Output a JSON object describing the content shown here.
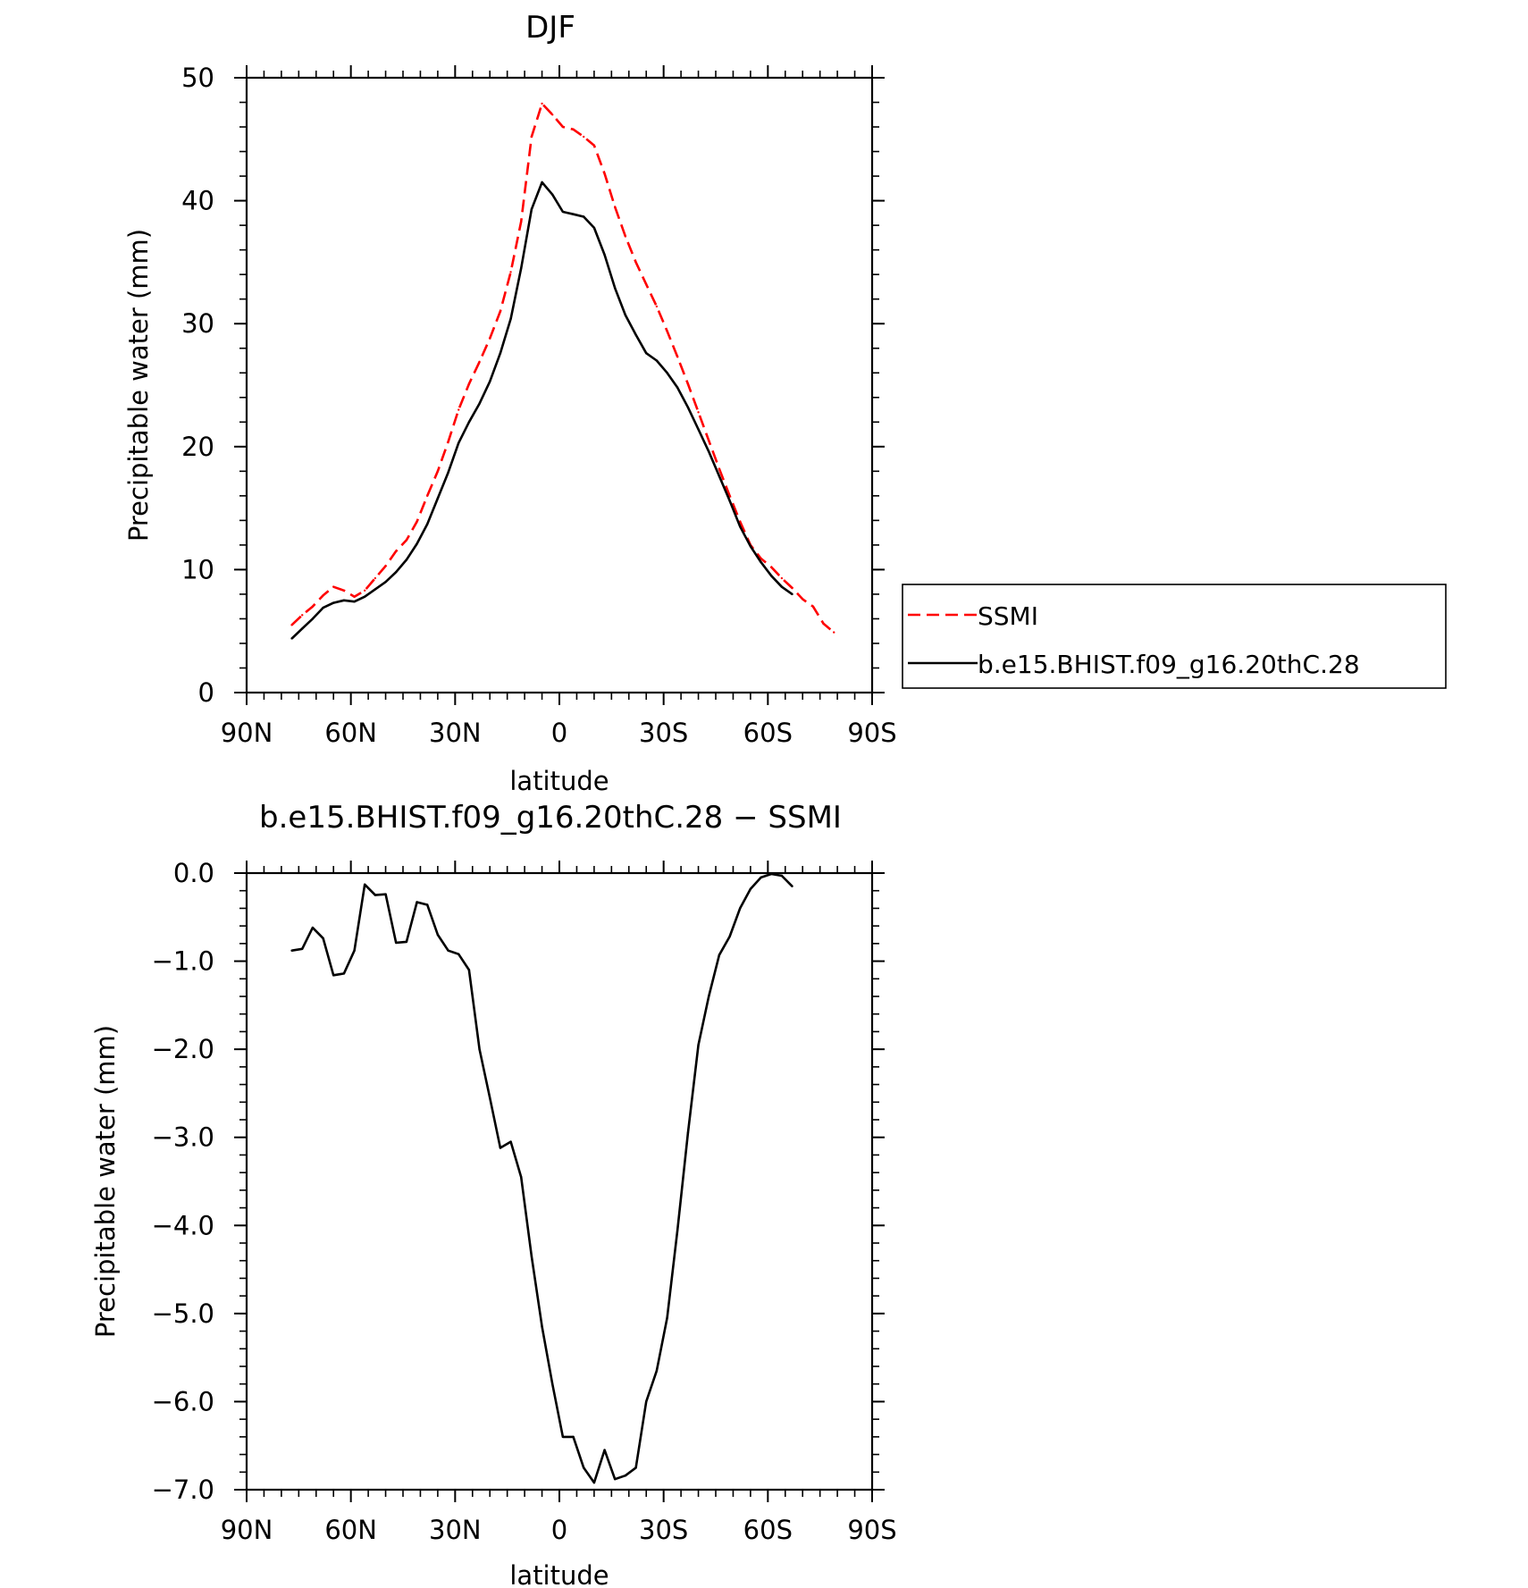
{
  "chart_data": [
    {
      "type": "line",
      "title": "DJF",
      "xlabel": "latitude",
      "ylabel": "Precipitable water (mm)",
      "xlim": [
        90,
        -90
      ],
      "ylim": [
        0,
        50
      ],
      "x_tick_values": [
        90,
        60,
        30,
        0,
        -30,
        -60,
        -90
      ],
      "x_tick_labels": [
        "90N",
        "60N",
        "30N",
        "0",
        "30S",
        "60S",
        "90S"
      ],
      "y_tick_values": [
        0,
        10,
        20,
        30,
        40,
        50
      ],
      "y_tick_labels": [
        "0",
        "10",
        "20",
        "30",
        "40",
        "50"
      ],
      "grid": false,
      "legend_position": "right",
      "series": [
        {
          "name": "SSMI",
          "color": "#ff0000",
          "dash": "dashed",
          "x": [
            77,
            74,
            71,
            68,
            65,
            62,
            59,
            56,
            53,
            50,
            47,
            44,
            41,
            38,
            35,
            32,
            29,
            26,
            23,
            20,
            17,
            14,
            11,
            8,
            5,
            2,
            -1,
            -4,
            -7,
            -10,
            -13,
            -16,
            -19,
            -22,
            -25,
            -28,
            -31,
            -34,
            -37,
            -40,
            -43,
            -46,
            -49,
            -52,
            -55,
            -58,
            -61,
            -64,
            -67,
            -70,
            -73,
            -76,
            -79
          ],
          "y": [
            5.5,
            6.3,
            7.0,
            7.9,
            8.6,
            8.3,
            7.8,
            8.3,
            9.3,
            10.3,
            11.5,
            12.4,
            13.9,
            16.0,
            18.0,
            20.4,
            23.0,
            25.1,
            26.9,
            28.8,
            31.0,
            34.2,
            38.3,
            45.2,
            47.9,
            47.0,
            46.0,
            45.8,
            45.2,
            44.5,
            42.2,
            39.5,
            37.1,
            35.0,
            33.2,
            31.4,
            29.4,
            27.3,
            25.1,
            22.8,
            20.5,
            18.2,
            16.0,
            13.9,
            12.0,
            10.9,
            10.2,
            9.3,
            8.5,
            7.6,
            7.0,
            5.6,
            4.9
          ]
        },
        {
          "name": "b.e15.BHIST.f09_g16.20thC.28",
          "color": "#000000",
          "dash": "solid",
          "x": [
            77,
            74,
            71,
            68,
            65,
            62,
            59,
            56,
            53,
            50,
            47,
            44,
            41,
            38,
            35,
            32,
            29,
            26,
            23,
            20,
            17,
            14,
            11,
            8,
            5,
            2,
            -1,
            -4,
            -7,
            -10,
            -13,
            -16,
            -19,
            -22,
            -25,
            -28,
            -31,
            -34,
            -37,
            -40,
            -43,
            -46,
            -49,
            -52,
            -55,
            -58,
            -61,
            -64,
            -67
          ],
          "y": [
            4.4,
            5.2,
            6.0,
            6.9,
            7.3,
            7.5,
            7.4,
            7.8,
            8.4,
            9.0,
            9.8,
            10.8,
            12.1,
            13.7,
            15.8,
            17.9,
            20.3,
            22.0,
            23.5,
            25.3,
            27.6,
            30.4,
            34.5,
            39.3,
            41.5,
            40.5,
            39.1,
            38.9,
            38.7,
            37.8,
            35.6,
            32.9,
            30.7,
            29.1,
            27.6,
            27.0,
            26.0,
            24.8,
            23.2,
            21.4,
            19.6,
            17.6,
            15.6,
            13.5,
            11.9,
            10.6,
            9.5,
            8.6,
            8.0
          ]
        }
      ]
    },
    {
      "type": "line",
      "title": "b.e15.BHIST.f09_g16.20thC.28 − SSMI",
      "xlabel": "latitude",
      "ylabel": "Precipitable water (mm)",
      "xlim": [
        90,
        -90
      ],
      "ylim": [
        -7.0,
        0.0
      ],
      "x_tick_values": [
        90,
        60,
        30,
        0,
        -30,
        -60,
        -90
      ],
      "x_tick_labels": [
        "90N",
        "60N",
        "30N",
        "0",
        "30S",
        "60S",
        "90S"
      ],
      "y_tick_values": [
        0,
        -1,
        -2,
        -3,
        -4,
        -5,
        -6,
        -7
      ],
      "y_tick_labels": [
        "0.0",
        "−1.0",
        "−2.0",
        "−3.0",
        "−4.0",
        "−5.0",
        "−6.0",
        "−7.0"
      ],
      "grid": false,
      "series": [
        {
          "color": "#000000",
          "dash": "solid",
          "x": [
            77,
            74,
            71,
            68,
            65,
            62,
            59,
            56,
            53,
            50,
            47,
            44,
            41,
            38,
            35,
            32,
            29,
            26,
            23,
            20,
            17,
            14,
            11,
            8,
            5,
            2,
            -1,
            -4,
            -7,
            -10,
            -13,
            -16,
            -19,
            -22,
            -25,
            -28,
            -31,
            -34,
            -37,
            -40,
            -43,
            -46,
            -49,
            -52,
            -55,
            -58,
            -61,
            -64,
            -67
          ],
          "y": [
            -0.88,
            -0.86,
            -0.62,
            -0.74,
            -1.16,
            -1.14,
            -0.88,
            -0.13,
            -0.25,
            -0.24,
            -0.79,
            -0.78,
            -0.33,
            -0.36,
            -0.7,
            -0.88,
            -0.92,
            -1.1,
            -2.0,
            -2.55,
            -3.12,
            -3.05,
            -3.45,
            -4.35,
            -5.15,
            -5.8,
            -6.4,
            -6.4,
            -6.75,
            -6.92,
            -6.55,
            -6.88,
            -6.84,
            -6.75,
            -6.0,
            -5.65,
            -5.05,
            -4.05,
            -2.95,
            -1.95,
            -1.4,
            -0.93,
            -0.72,
            -0.4,
            -0.18,
            -0.05,
            -0.01,
            -0.03,
            -0.15
          ]
        }
      ]
    }
  ]
}
